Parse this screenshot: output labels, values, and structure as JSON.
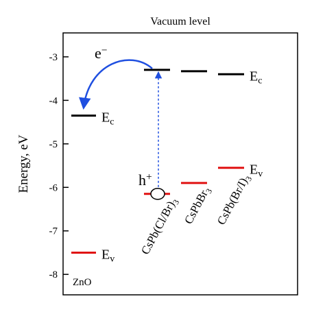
{
  "chart_data": {
    "type": "energy-levels",
    "title": "Vacuum level",
    "ylabel": "Energy, eV",
    "ylim": [
      -8.47,
      -2.45
    ],
    "yticks": [
      -3,
      -4,
      -5,
      -6,
      -7,
      -8
    ],
    "conduction_color": "#000000",
    "valence_color": "#e01010",
    "conduction_label": {
      "main": "E",
      "sub": "c"
    },
    "valence_label": {
      "main": "E",
      "sub": "v"
    },
    "electron": {
      "main": "e",
      "sup": "−"
    },
    "hole": {
      "main": "h",
      "sup": "+"
    },
    "materials": [
      {
        "name": {
          "main": "ZnO"
        },
        "conduction": -4.35,
        "valence": -7.5
      },
      {
        "name": {
          "main": "CsPb(Cl/Br)",
          "sub": "3"
        },
        "conduction": -3.3,
        "valence": -6.15
      },
      {
        "name": {
          "main": "CsPbBr",
          "sub": "3"
        },
        "conduction": -3.33,
        "valence": -5.9
      },
      {
        "name": {
          "main": "CsPb(Br/I)",
          "sub": "3"
        },
        "conduction": -3.4,
        "valence": -5.55
      }
    ]
  }
}
